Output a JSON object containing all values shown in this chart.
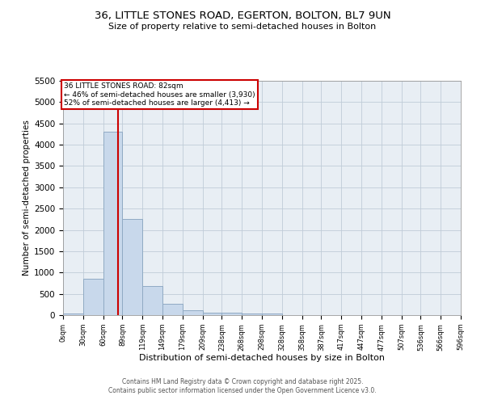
{
  "title_line1": "36, LITTLE STONES ROAD, EGERTON, BOLTON, BL7 9UN",
  "title_line2": "Size of property relative to semi-detached houses in Bolton",
  "xlabel": "Distribution of semi-detached houses by size in Bolton",
  "ylabel": "Number of semi-detached properties",
  "bar_edges": [
    0,
    30,
    60,
    89,
    119,
    149,
    179,
    209,
    238,
    268,
    298,
    328,
    358,
    387,
    417,
    447,
    477,
    507,
    536,
    566,
    596
  ],
  "bar_heights": [
    30,
    850,
    4300,
    2250,
    690,
    260,
    115,
    65,
    55,
    35,
    30,
    5,
    3,
    2,
    1,
    1,
    0,
    0,
    0,
    0
  ],
  "bar_color": "#c8d8eb",
  "bar_edgecolor": "#90aac4",
  "bar_linewidth": 0.7,
  "tick_labels": [
    "0sqm",
    "30sqm",
    "60sqm",
    "89sqm",
    "119sqm",
    "149sqm",
    "179sqm",
    "209sqm",
    "238sqm",
    "268sqm",
    "298sqm",
    "328sqm",
    "358sqm",
    "387sqm",
    "417sqm",
    "447sqm",
    "477sqm",
    "507sqm",
    "536sqm",
    "566sqm",
    "596sqm"
  ],
  "ylim": [
    0,
    5500
  ],
  "yticks": [
    0,
    500,
    1000,
    1500,
    2000,
    2500,
    3000,
    3500,
    4000,
    4500,
    5000,
    5500
  ],
  "red_line_x": 82,
  "annotation_title": "36 LITTLE STONES ROAD: 82sqm",
  "annotation_line1": "← 46% of semi-detached houses are smaller (3,930)",
  "annotation_line2": "52% of semi-detached houses are larger (4,413) →",
  "annotation_box_color": "#ffffff",
  "annotation_border_color": "#cc0000",
  "red_line_color": "#cc0000",
  "grid_color": "#c0ccd8",
  "bg_color": "#e8eef4",
  "footer_line1": "Contains HM Land Registry data © Crown copyright and database right 2025.",
  "footer_line2": "Contains public sector information licensed under the Open Government Licence v3.0."
}
